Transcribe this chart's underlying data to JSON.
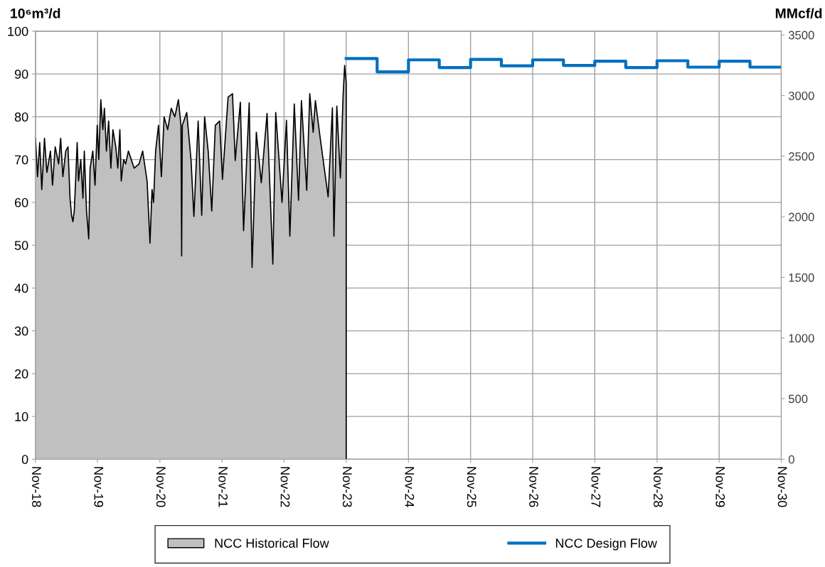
{
  "chart_data": {
    "type": "area",
    "ylabel": "10⁶m³/d",
    "y2label": "MMcf/d",
    "xlim": [
      "2018-11",
      "2030-11"
    ],
    "xticks": [
      {
        "value": "2018-11",
        "label": "Nov-18"
      },
      {
        "value": "2019-11",
        "label": "Nov-19"
      },
      {
        "value": "2020-11",
        "label": "Nov-20"
      },
      {
        "value": "2021-11",
        "label": "Nov-21"
      },
      {
        "value": "2022-11",
        "label": "Nov-22"
      },
      {
        "value": "2023-11",
        "label": "Nov-23"
      },
      {
        "value": "2024-11",
        "label": "Nov-24"
      },
      {
        "value": "2025-11",
        "label": "Nov-25"
      },
      {
        "value": "2026-11",
        "label": "Nov-26"
      },
      {
        "value": "2027-11",
        "label": "Nov-27"
      },
      {
        "value": "2028-11",
        "label": "Nov-28"
      },
      {
        "value": "2029-11",
        "label": "Nov-29"
      },
      {
        "value": "2030-11",
        "label": "Nov-30"
      }
    ],
    "ylim": [
      0,
      100
    ],
    "yticks": [
      0,
      10,
      20,
      30,
      40,
      50,
      60,
      70,
      80,
      90,
      100
    ],
    "y2lim": [
      0,
      3531
    ],
    "y2ticks": [
      0,
      500,
      1000,
      1500,
      2000,
      2500,
      3000,
      3500
    ],
    "grid": true,
    "legend": "bottom",
    "series": [
      {
        "name": "NCC Historical Flow",
        "color": "#c0c0c0",
        "x": [
          "2018-11-01",
          "2018-11-13",
          "2018-11-26",
          "2018-12-08",
          "2018-12-24",
          "2019-01-07",
          "2019-01-28",
          "2019-02-09",
          "2019-02-25",
          "2019-03-17",
          "2019-03-29",
          "2019-04-11",
          "2019-04-28",
          "2019-05-11",
          "2019-05-23",
          "2019-06-01",
          "2019-06-09",
          "2019-06-17",
          "2019-06-26",
          "2019-07-04",
          "2019-07-12",
          "2019-07-25",
          "2019-08-07",
          "2019-08-15",
          "2019-08-28",
          "2019-09-10",
          "2019-09-18",
          "2019-10-04",
          "2019-10-17",
          "2019-10-30",
          "2019-11-08",
          "2019-11-20",
          "2019-12-02",
          "2019-12-11",
          "2019-12-23",
          "2020-01-05",
          "2020-01-18",
          "2020-01-30",
          "2020-02-16",
          "2020-02-28",
          "2020-03-11",
          "2020-03-19",
          "2020-04-02",
          "2020-04-14",
          "2020-04-30",
          "2020-05-17",
          "2020-06-03",
          "2020-07-02",
          "2020-07-23",
          "2020-08-18",
          "2020-09-04",
          "2020-09-16",
          "2020-09-25",
          "2020-10-07",
          "2020-10-24",
          "2020-11-10",
          "2020-11-26",
          "2020-12-17",
          "2021-01-07",
          "2021-01-28",
          "2021-02-18",
          "2021-03-05",
          "2021-03-09",
          "2021-03-13",
          "2021-04-08",
          "2021-05-03",
          "2021-05-20",
          "2021-06-14",
          "2021-07-05",
          "2021-07-22",
          "2021-08-12",
          "2021-09-02",
          "2021-09-23",
          "2021-10-18",
          "2021-11-04",
          "2021-12-07",
          "2022-01-02",
          "2022-01-18",
          "2022-02-17",
          "2022-03-08",
          "2022-04-10",
          "2022-04-27",
          "2022-05-22",
          "2022-06-20",
          "2022-07-24",
          "2022-08-27",
          "2022-09-13",
          "2022-10-20",
          "2022-11-15",
          "2022-12-05",
          "2022-12-31",
          "2023-01-25",
          "2023-02-11",
          "2023-03-14",
          "2023-04-01",
          "2023-04-21",
          "2023-05-04",
          "2023-06-02",
          "2023-07-18",
          "2023-08-12",
          "2023-08-21",
          "2023-09-07",
          "2023-09-28",
          "2023-10-14",
          "2023-10-23",
          "2023-11-01"
        ],
        "values": [
          75,
          66,
          74,
          63,
          75,
          67,
          72,
          64,
          73,
          69,
          75,
          66,
          72,
          73,
          61,
          57,
          55.5,
          58,
          66,
          74,
          65,
          70,
          61,
          72,
          58,
          51.5,
          68,
          72,
          64,
          78,
          70,
          84,
          77,
          82,
          72,
          79,
          68,
          77,
          73,
          68,
          77,
          65,
          70,
          69,
          72,
          70,
          68,
          69,
          72,
          65,
          50.5,
          63,
          60,
          72,
          78,
          66,
          80,
          77,
          82,
          80,
          84,
          78,
          47.5,
          78,
          81,
          70,
          56.7,
          79,
          57,
          80,
          72,
          58,
          78,
          79,
          65.4,
          84.6,
          85.4,
          69.8,
          83.4,
          53.4,
          83.3,
          44.8,
          76.4,
          64.6,
          80.8,
          45.6,
          81,
          60,
          79.2,
          52.1,
          83,
          60.5,
          83.8,
          62.8,
          85.4,
          76.4,
          83.8,
          74.8,
          61.3,
          82.1,
          52.1,
          82.5,
          65.7,
          85,
          92,
          88
        ]
      },
      {
        "name": "NCC Design Flow",
        "type": "step",
        "color": "#0070c0",
        "x": [
          "2023-11",
          "2024-05",
          "2024-11",
          "2025-05",
          "2025-11",
          "2026-05",
          "2026-11",
          "2027-05",
          "2027-11",
          "2028-05",
          "2028-11",
          "2029-05",
          "2029-11",
          "2030-05",
          "2030-11"
        ],
        "values": [
          93.6,
          90.5,
          93.3,
          91.5,
          93.4,
          91.9,
          93.3,
          92.0,
          93.0,
          91.5,
          93.1,
          91.6,
          93.0,
          91.6,
          91.6
        ]
      }
    ]
  }
}
